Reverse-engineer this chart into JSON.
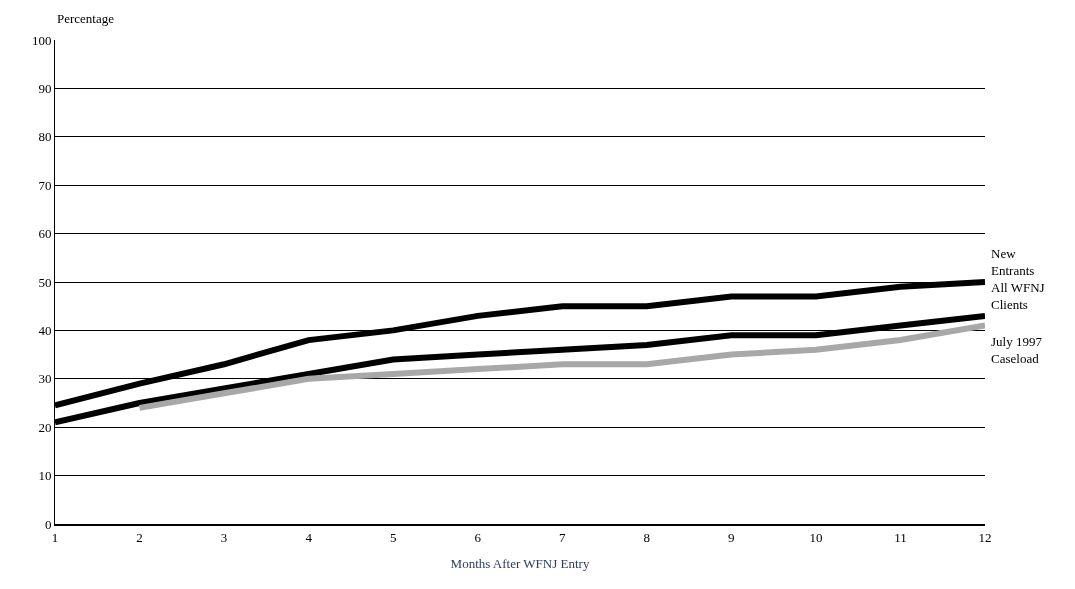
{
  "chart_data": {
    "type": "line",
    "ylabel": "Percentage",
    "xlabel": "Months After WFNJ Entry",
    "x": [
      1,
      2,
      3,
      4,
      5,
      6,
      7,
      8,
      9,
      10,
      11,
      12
    ],
    "series": [
      {
        "name": "New Entrants",
        "color": "#000000",
        "values": [
          24.5,
          29,
          33,
          38,
          40,
          43,
          45,
          45,
          47,
          47,
          49,
          50
        ]
      },
      {
        "name": "All WFNJ Clients",
        "color": "#000000",
        "values": [
          21,
          25,
          28,
          31,
          34,
          35,
          36,
          37,
          39,
          39,
          41,
          43
        ]
      },
      {
        "name": "July 1997 Caseload",
        "color": "#a8a8a8",
        "values": [
          null,
          24,
          27,
          30,
          31,
          32,
          33,
          33,
          35,
          36,
          38,
          41
        ]
      }
    ],
    "xlim": [
      1,
      12
    ],
    "xticks": [
      1,
      2,
      3,
      4,
      5,
      6,
      7,
      8,
      9,
      10,
      11,
      12
    ],
    "ylim": [
      0,
      100
    ],
    "yticks": [
      0,
      10,
      20,
      30,
      40,
      50,
      60,
      70,
      80,
      90,
      100
    ],
    "grid": "y",
    "legend": false,
    "marker": "none",
    "line_style": "solid"
  }
}
